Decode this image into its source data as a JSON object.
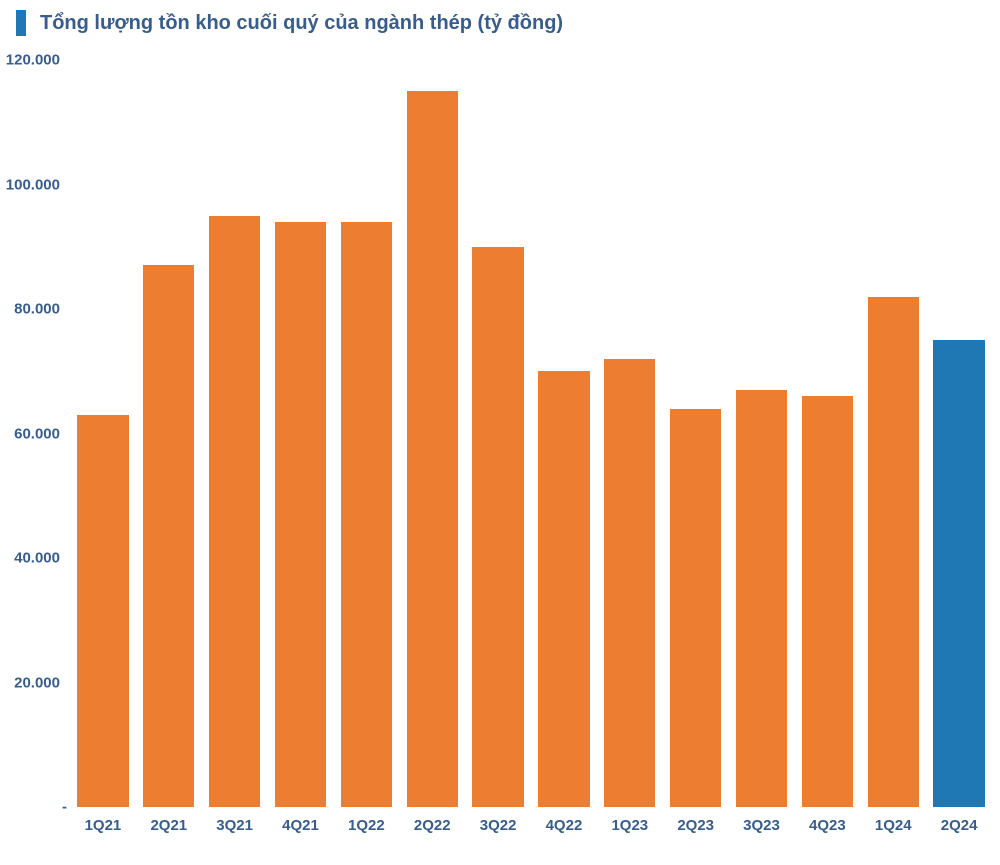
{
  "chart": {
    "type": "bar",
    "title": "Tổng lượng tồn kho cuối quý của ngành thép (tỷ đồng)",
    "title_color": "#385d8a",
    "title_fontsize": 20,
    "title_accent_color": "#1f77b4",
    "background_color": "#ffffff",
    "categories": [
      "1Q21",
      "2Q21",
      "3Q21",
      "4Q21",
      "1Q22",
      "2Q22",
      "3Q22",
      "4Q22",
      "1Q23",
      "2Q23",
      "3Q23",
      "4Q23",
      "1Q24",
      "2Q24"
    ],
    "values": [
      63,
      87,
      95,
      94,
      94,
      115,
      90,
      70,
      72,
      64,
      67,
      66,
      82,
      75
    ],
    "bar_colors": [
      "#ed7d31",
      "#ed7d31",
      "#ed7d31",
      "#ed7d31",
      "#ed7d31",
      "#ed7d31",
      "#ed7d31",
      "#ed7d31",
      "#ed7d31",
      "#ed7d31",
      "#ed7d31",
      "#ed7d31",
      "#ed7d31",
      "#1f77b4"
    ],
    "x_label_color": "#385d8a",
    "y_label_color": "#385d8a",
    "ylim": [
      0,
      120
    ],
    "yticks": [
      0,
      20,
      40,
      60,
      80,
      100,
      120
    ],
    "ytick_labels": [
      "-",
      "20.000",
      "40.000",
      "60.000",
      "80.000",
      "100.000",
      "120.000"
    ],
    "bar_width": 0.78,
    "x_fontsize": 15,
    "y_fontsize": 15,
    "x_fontweight": "bold",
    "y_fontweight": "600"
  }
}
